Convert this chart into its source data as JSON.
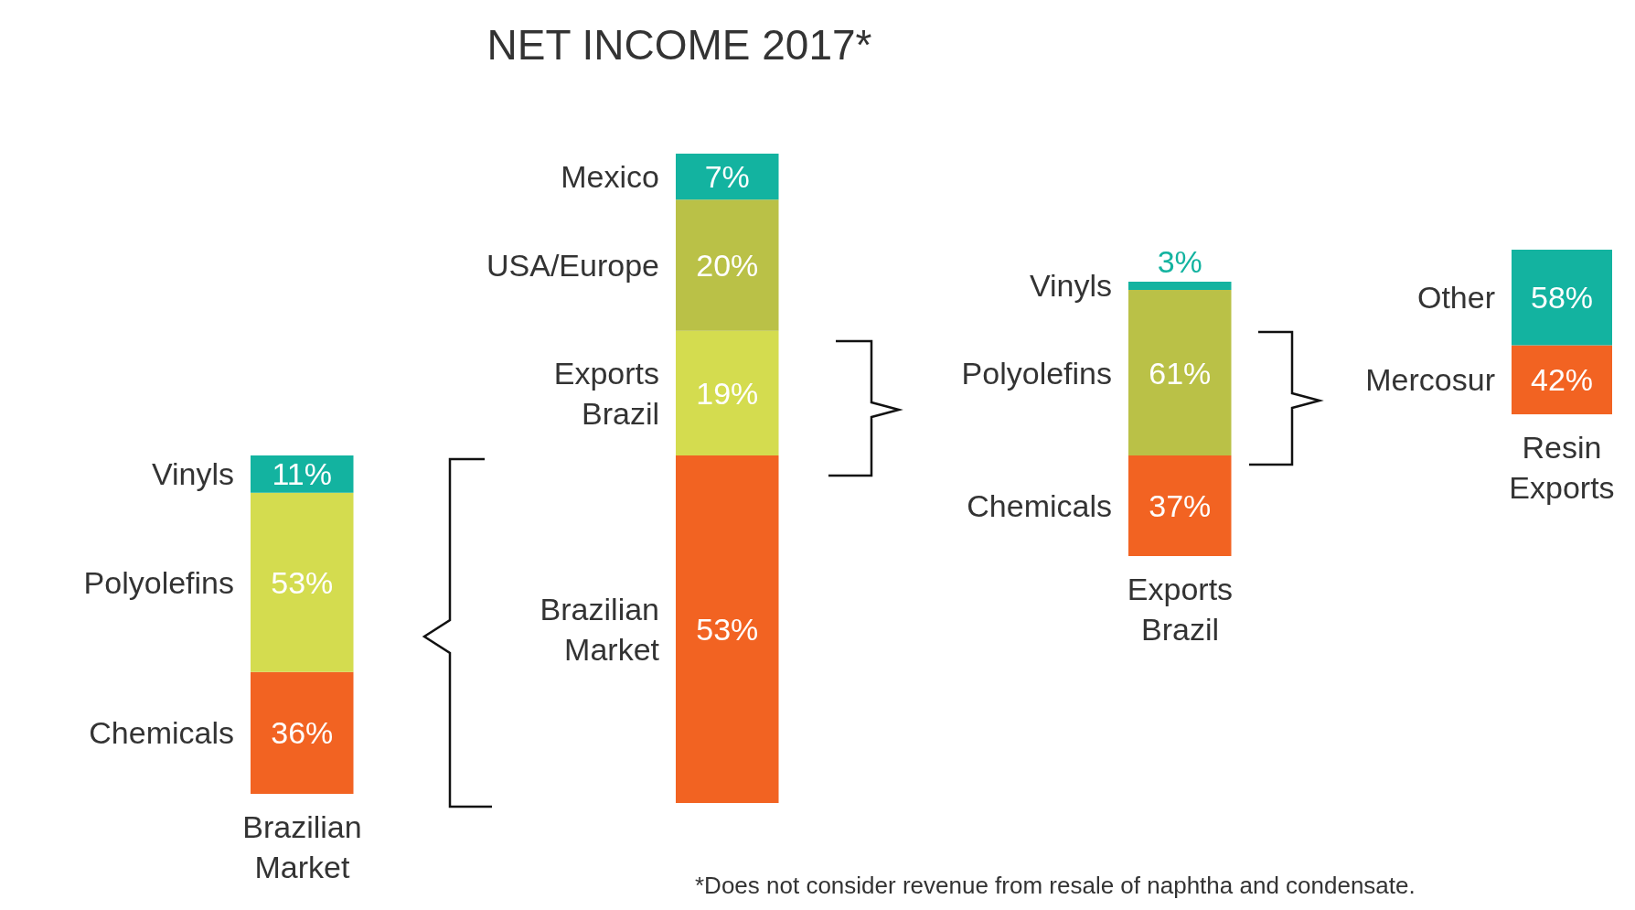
{
  "chart_data": [
    {
      "type": "bar",
      "stacked": true,
      "categories": [
        "Brazilian Market"
      ],
      "series": [
        {
          "name": "Chemicals",
          "color": "#f26322",
          "values": [
            36
          ],
          "value_labels": [
            "36%"
          ]
        },
        {
          "name": "Polyolefins",
          "color": "#d4dc4f",
          "values": [
            53
          ],
          "value_labels": [
            "53%"
          ]
        },
        {
          "name": "Vinyls",
          "color": "#13b3a0",
          "values": [
            11
          ],
          "value_labels": [
            "11%"
          ]
        }
      ]
    },
    {
      "type": "bar",
      "stacked": true,
      "title": "NET INCOME 2017*",
      "categories": [
        null
      ],
      "series": [
        {
          "name": "Brazilian Market",
          "color": "#f26322",
          "values": [
            53
          ],
          "value_labels": [
            "53%"
          ]
        },
        {
          "name": "Exports Brazil",
          "color": "#d4dc4f",
          "values": [
            19
          ],
          "value_labels": [
            "19%"
          ]
        },
        {
          "name": "USA/Europe",
          "color": "#bac147",
          "values": [
            20
          ],
          "value_labels": [
            "20%"
          ]
        },
        {
          "name": "Mexico",
          "color": "#13b3a0",
          "values": [
            7
          ],
          "value_labels": [
            "7%"
          ]
        }
      ]
    },
    {
      "type": "bar",
      "stacked": true,
      "categories": [
        "Exports Brazil"
      ],
      "annotations": [
        "*Does not consider revenue from resale of naphtha and condensate."
      ],
      "series": [
        {
          "name": "Chemicals",
          "color": "#f26322",
          "values": [
            37
          ],
          "value_labels": [
            "37%"
          ]
        },
        {
          "name": "Polyolefins",
          "color": "#bac147",
          "values": [
            61
          ],
          "value_labels": [
            "61%"
          ]
        },
        {
          "name": "Vinyls",
          "color": "#13b3a0",
          "values": [
            3
          ],
          "value_labels": [
            "3%"
          ]
        }
      ]
    },
    {
      "type": "bar",
      "stacked": true,
      "categories": [
        "Resin Exports"
      ],
      "series": [
        {
          "name": "Mercosur",
          "color": "#f26322",
          "values": [
            42
          ],
          "value_labels": [
            "42%"
          ]
        },
        {
          "name": "Other",
          "color": "#13b3a0",
          "values": [
            58
          ],
          "value_labels": [
            "58%"
          ]
        }
      ]
    }
  ]
}
